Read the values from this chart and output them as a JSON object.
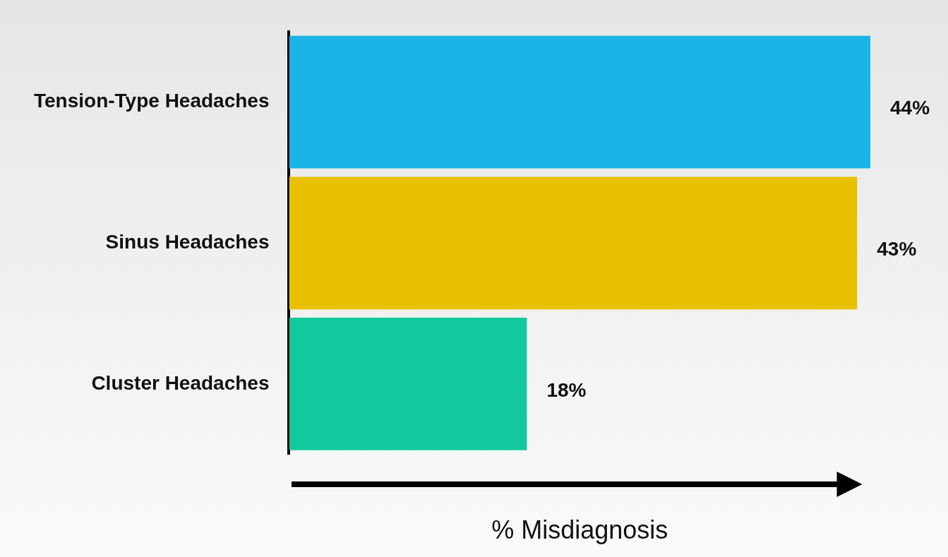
{
  "chart_data": {
    "type": "bar",
    "orientation": "horizontal",
    "xlabel": "% Misdiagnosis",
    "categories": [
      "Tension-Type Headaches",
      "Sinus Headaches",
      "Cluster Headaches"
    ],
    "values": [
      44,
      43,
      18
    ],
    "colors": [
      "#1ab4e6",
      "#e8c000",
      "#12c89c"
    ],
    "value_labels": [
      "44%",
      "43%",
      "18%"
    ],
    "xlim": [
      0,
      44
    ],
    "grid": false,
    "legend": false
  }
}
